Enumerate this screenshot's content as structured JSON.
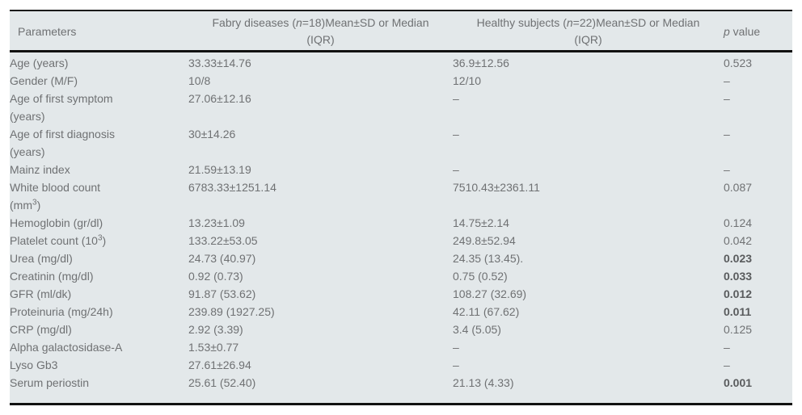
{
  "colors": {
    "table_background": "#e3e8ea",
    "text": "#6f7173",
    "bold_text": "#595b5d",
    "rule_lines": "#111111",
    "page_background": "#ffffff"
  },
  "table": {
    "header": {
      "parameters": "Parameters",
      "fabry_parts": [
        {
          "t": "Fabry diseases ("
        },
        {
          "t": "n",
          "i": true
        },
        {
          "t": "=18)Mean±SD or Median"
        },
        {
          "br": true
        },
        {
          "t": "(IQR)"
        }
      ],
      "healthy_parts": [
        {
          "t": "Healthy subjects ("
        },
        {
          "t": "n",
          "i": true
        },
        {
          "t": "=22)Mean±SD or Median"
        },
        {
          "br": true
        },
        {
          "t": "(IQR)"
        }
      ],
      "p_value_parts": [
        {
          "t": "p",
          "i": true
        },
        {
          "t": " value"
        }
      ]
    },
    "rows": [
      {
        "param": [
          {
            "t": "Age (years)"
          }
        ],
        "fabry": "33.33±14.76",
        "healthy": "36.9±12.56",
        "p": "0.523",
        "p_bold": false
      },
      {
        "param": [
          {
            "t": "Gender (M/F)"
          }
        ],
        "fabry": "10/8",
        "healthy": "12/10",
        "p": "–",
        "p_bold": false
      },
      {
        "param": [
          {
            "t": "Age of first symptom"
          },
          {
            "br": true
          },
          {
            "t": "(years)"
          }
        ],
        "fabry": "27.06±12.16",
        "healthy": "–",
        "p": "–",
        "p_bold": false
      },
      {
        "param": [
          {
            "t": "Age of first diagnosis"
          },
          {
            "br": true
          },
          {
            "t": "(years)"
          }
        ],
        "fabry": "30±14.26",
        "healthy": "–",
        "p": "–",
        "p_bold": false
      },
      {
        "param": [
          {
            "t": "Mainz index"
          }
        ],
        "fabry": "21.59±13.19",
        "healthy": "–",
        "p": "–",
        "p_bold": false
      },
      {
        "param": [
          {
            "t": "White blood count"
          },
          {
            "br": true
          },
          {
            "t": "(mm"
          },
          {
            "t": "3",
            "sup": true
          },
          {
            "t": ")"
          }
        ],
        "fabry": "6783.33±1251.14",
        "healthy": "7510.43±2361.11",
        "p": "0.087",
        "p_bold": false
      },
      {
        "param": [
          {
            "t": "Hemoglobin (gr/dl)"
          }
        ],
        "fabry": "13.23±1.09",
        "healthy": "14.75±2.14",
        "p": "0.124",
        "p_bold": false
      },
      {
        "param": [
          {
            "t": "Platelet count (10"
          },
          {
            "t": "3",
            "sup": true
          },
          {
            "t": ")"
          }
        ],
        "fabry": "133.22±53.05",
        "healthy": "249.8±52.94",
        "p": "0.042",
        "p_bold": false
      },
      {
        "param": [
          {
            "t": "Urea (mg/dl)"
          }
        ],
        "fabry": "24.73 (40.97)",
        "healthy": "24.35 (13.45).",
        "p": "0.023",
        "p_bold": true
      },
      {
        "param": [
          {
            "t": "Creatinin (mg/dl)"
          }
        ],
        "fabry": "0.92 (0.73)",
        "healthy": "0.75 (0.52)",
        "p": "0.033",
        "p_bold": true
      },
      {
        "param": [
          {
            "t": "GFR (ml/dk)"
          }
        ],
        "fabry": "91.87 (53.62)",
        "healthy": "108.27 (32.69)",
        "p": "0.012",
        "p_bold": true
      },
      {
        "param": [
          {
            "t": "Proteinuria (mg/24h)"
          }
        ],
        "fabry": "239.89 (1927.25)",
        "healthy": "42.11 (67.62)",
        "p": "0.011",
        "p_bold": true
      },
      {
        "param": [
          {
            "t": "CRP (mg/dl)"
          }
        ],
        "fabry": "2.92 (3.39)",
        "healthy": "3.4 (5.05)",
        "p": "0.125",
        "p_bold": false
      },
      {
        "param": [
          {
            "t": "Alpha galactosidase-A"
          }
        ],
        "fabry": "1.53±0.77",
        "healthy": "–",
        "p": "–",
        "p_bold": false
      },
      {
        "param": [
          {
            "t": "Lyso Gb3"
          }
        ],
        "fabry": "27.61±26.94",
        "healthy": "–",
        "p": "–",
        "p_bold": false
      },
      {
        "param": [
          {
            "t": "Serum periostin"
          }
        ],
        "fabry": "25.61 (52.40)",
        "healthy": "21.13 (4.33)",
        "p": "0.001",
        "p_bold": true
      }
    ]
  }
}
